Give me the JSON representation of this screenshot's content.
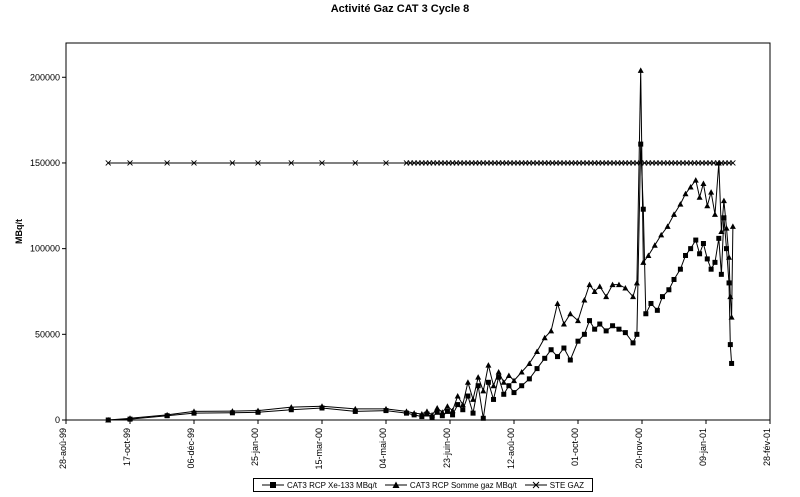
{
  "chart_data": {
    "type": "line",
    "title": "Activité Gaz CAT 3 Cycle 8",
    "ylabel": "MBq/t",
    "xlabel": "",
    "ylim": [
      0,
      220000
    ],
    "yticks": [
      0,
      50000,
      100000,
      150000,
      200000
    ],
    "xlim": [
      "1999-08-28",
      "2001-02-28"
    ],
    "xticks": [
      {
        "date": "1999-08-28",
        "label": "28-aoû-99"
      },
      {
        "date": "1999-10-17",
        "label": "17-oct-99"
      },
      {
        "date": "1999-12-06",
        "label": "06-déc-99"
      },
      {
        "date": "2000-01-25",
        "label": "25-jan-00"
      },
      {
        "date": "2000-03-15",
        "label": "15-mar-00"
      },
      {
        "date": "2000-05-04",
        "label": "04-mai-00"
      },
      {
        "date": "2000-06-23",
        "label": "23-juin-00"
      },
      {
        "date": "2000-08-12",
        "label": "12-aoû-00"
      },
      {
        "date": "2000-10-01",
        "label": "01-oct-00"
      },
      {
        "date": "2000-11-20",
        "label": "20-nov-00"
      },
      {
        "date": "2001-01-09",
        "label": "09-jan-01"
      },
      {
        "date": "2001-02-28",
        "label": "28-fév-01"
      }
    ],
    "grid": false,
    "legend_position": "bottom",
    "series": [
      {
        "name": "CAT3 RCP  Xe-133 MBq/t",
        "marker": "square",
        "points": [
          [
            "1999-09-30",
            0
          ],
          [
            "1999-10-17",
            500
          ],
          [
            "1999-11-15",
            2500
          ],
          [
            "1999-12-06",
            4000
          ],
          [
            "2000-01-05",
            4200
          ],
          [
            "2000-01-25",
            4500
          ],
          [
            "2000-02-20",
            6000
          ],
          [
            "2000-03-15",
            7000
          ],
          [
            "2000-04-10",
            5000
          ],
          [
            "2000-05-04",
            5500
          ],
          [
            "2000-05-20",
            4000
          ],
          [
            "2000-05-26",
            3000
          ],
          [
            "2000-06-01",
            2000
          ],
          [
            "2000-06-05",
            3500
          ],
          [
            "2000-06-09",
            1500
          ],
          [
            "2000-06-13",
            4500
          ],
          [
            "2000-06-17",
            2500
          ],
          [
            "2000-06-21",
            5000
          ],
          [
            "2000-06-25",
            3000
          ],
          [
            "2000-06-29",
            9000
          ],
          [
            "2000-07-03",
            6000
          ],
          [
            "2000-07-07",
            14000
          ],
          [
            "2000-07-11",
            4000
          ],
          [
            "2000-07-15",
            20000
          ],
          [
            "2000-07-19",
            1000
          ],
          [
            "2000-07-23",
            22000
          ],
          [
            "2000-07-27",
            12000
          ],
          [
            "2000-07-31",
            25000
          ],
          [
            "2000-08-04",
            15000
          ],
          [
            "2000-08-08",
            20000
          ],
          [
            "2000-08-12",
            16000
          ],
          [
            "2000-08-18",
            20000
          ],
          [
            "2000-08-24",
            24000
          ],
          [
            "2000-08-30",
            30000
          ],
          [
            "2000-09-05",
            36000
          ],
          [
            "2000-09-10",
            41000
          ],
          [
            "2000-09-15",
            37000
          ],
          [
            "2000-09-20",
            42000
          ],
          [
            "2000-09-25",
            35000
          ],
          [
            "2000-10-01",
            46000
          ],
          [
            "2000-10-06",
            50000
          ],
          [
            "2000-10-10",
            58000
          ],
          [
            "2000-10-14",
            53000
          ],
          [
            "2000-10-18",
            56000
          ],
          [
            "2000-10-23",
            52000
          ],
          [
            "2000-10-28",
            55000
          ],
          [
            "2000-11-02",
            53000
          ],
          [
            "2000-11-07",
            51000
          ],
          [
            "2000-11-13",
            45000
          ],
          [
            "2000-11-16",
            50000
          ],
          [
            "2000-11-19",
            161000
          ],
          [
            "2000-11-21",
            123000
          ],
          [
            "2000-11-23",
            62000
          ],
          [
            "2000-11-27",
            68000
          ],
          [
            "2000-12-02",
            64000
          ],
          [
            "2000-12-06",
            72000
          ],
          [
            "2000-12-11",
            76000
          ],
          [
            "2000-12-15",
            82000
          ],
          [
            "2000-12-20",
            88000
          ],
          [
            "2000-12-24",
            96000
          ],
          [
            "2000-12-28",
            100000
          ],
          [
            "2001-01-01",
            105000
          ],
          [
            "2001-01-04",
            97000
          ],
          [
            "2001-01-07",
            103000
          ],
          [
            "2001-01-10",
            94000
          ],
          [
            "2001-01-13",
            88000
          ],
          [
            "2001-01-16",
            92000
          ],
          [
            "2001-01-19",
            106000
          ],
          [
            "2001-01-21",
            85000
          ],
          [
            "2001-01-23",
            118000
          ],
          [
            "2001-01-25",
            100000
          ],
          [
            "2001-01-27",
            80000
          ],
          [
            "2001-01-28",
            44000
          ],
          [
            "2001-01-29",
            33000
          ]
        ]
      },
      {
        "name": "CAT3 RCP  Somme gaz MBq/t",
        "marker": "triangle",
        "points": [
          [
            "1999-09-30",
            0
          ],
          [
            "1999-10-17",
            1000
          ],
          [
            "1999-11-15",
            3000
          ],
          [
            "1999-12-06",
            5000
          ],
          [
            "2000-01-05",
            5200
          ],
          [
            "2000-01-25",
            5500
          ],
          [
            "2000-02-20",
            7500
          ],
          [
            "2000-03-15",
            8000
          ],
          [
            "2000-04-10",
            6500
          ],
          [
            "2000-05-04",
            6500
          ],
          [
            "2000-05-20",
            5000
          ],
          [
            "2000-05-26",
            4000
          ],
          [
            "2000-06-01",
            3500
          ],
          [
            "2000-06-05",
            5000
          ],
          [
            "2000-06-09",
            3000
          ],
          [
            "2000-06-13",
            7000
          ],
          [
            "2000-06-17",
            4500
          ],
          [
            "2000-06-21",
            8000
          ],
          [
            "2000-06-25",
            5500
          ],
          [
            "2000-06-29",
            14000
          ],
          [
            "2000-07-03",
            9000
          ],
          [
            "2000-07-07",
            22000
          ],
          [
            "2000-07-11",
            12000
          ],
          [
            "2000-07-15",
            25000
          ],
          [
            "2000-07-19",
            17000
          ],
          [
            "2000-07-23",
            32000
          ],
          [
            "2000-07-27",
            20000
          ],
          [
            "2000-07-31",
            28000
          ],
          [
            "2000-08-04",
            22000
          ],
          [
            "2000-08-08",
            26000
          ],
          [
            "2000-08-12",
            23000
          ],
          [
            "2000-08-18",
            28000
          ],
          [
            "2000-08-24",
            33000
          ],
          [
            "2000-08-30",
            40000
          ],
          [
            "2000-09-05",
            48000
          ],
          [
            "2000-09-10",
            52000
          ],
          [
            "2000-09-15",
            68000
          ],
          [
            "2000-09-20",
            56000
          ],
          [
            "2000-09-25",
            62000
          ],
          [
            "2000-10-01",
            58000
          ],
          [
            "2000-10-06",
            70000
          ],
          [
            "2000-10-10",
            79000
          ],
          [
            "2000-10-14",
            75000
          ],
          [
            "2000-10-18",
            78000
          ],
          [
            "2000-10-23",
            72000
          ],
          [
            "2000-10-28",
            79000
          ],
          [
            "2000-11-02",
            79000
          ],
          [
            "2000-11-07",
            77000
          ],
          [
            "2000-11-13",
            72000
          ],
          [
            "2000-11-16",
            80000
          ],
          [
            "2000-11-19",
            204000
          ],
          [
            "2000-11-21",
            92000
          ],
          [
            "2000-11-25",
            96000
          ],
          [
            "2000-11-30",
            102000
          ],
          [
            "2000-12-05",
            108000
          ],
          [
            "2000-12-10",
            113000
          ],
          [
            "2000-12-15",
            120000
          ],
          [
            "2000-12-20",
            126000
          ],
          [
            "2000-12-24",
            132000
          ],
          [
            "2000-12-28",
            136000
          ],
          [
            "2001-01-01",
            140000
          ],
          [
            "2001-01-04",
            130000
          ],
          [
            "2001-01-07",
            138000
          ],
          [
            "2001-01-10",
            125000
          ],
          [
            "2001-01-13",
            133000
          ],
          [
            "2001-01-16",
            120000
          ],
          [
            "2001-01-19",
            150000
          ],
          [
            "2001-01-21",
            110000
          ],
          [
            "2001-01-23",
            128000
          ],
          [
            "2001-01-25",
            112000
          ],
          [
            "2001-01-27",
            95000
          ],
          [
            "2001-01-28",
            72000
          ],
          [
            "2001-01-29",
            60000
          ],
          [
            "2001-01-30",
            113000
          ]
        ]
      },
      {
        "name": "STE GAZ",
        "marker": "x",
        "constant_value": 150000,
        "range": [
          "1999-09-30",
          "2001-01-30"
        ],
        "sparse_dates": [
          "1999-09-30",
          "1999-10-17",
          "1999-11-15",
          "1999-12-06",
          "2000-01-05",
          "2000-01-25",
          "2000-02-20",
          "2000-03-15",
          "2000-04-10",
          "2000-05-04"
        ],
        "dense_start": "2000-05-20",
        "dense_step_days": 3
      }
    ]
  }
}
